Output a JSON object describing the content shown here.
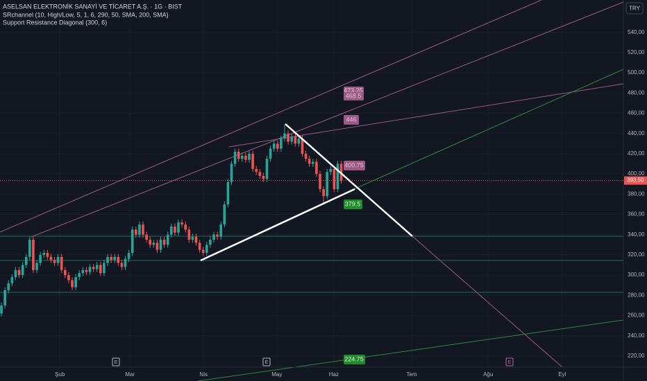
{
  "chart_data": {
    "type": "candlestick",
    "title": "ASELSAN ELEKTRONİK SANAYİ VE TİCARET A.Ş. · 1G · BIST",
    "indicators": [
      "SRchannel (10, High/Low, 5, 1, 6, 290, 50, SMA, 200, SMA)",
      "Support Resistance Diagonal (300, 6)"
    ],
    "currency": "TRY",
    "up_color": "#26a69a",
    "down_color": "#ef5350",
    "open": [
      262,
      270,
      285,
      292,
      298,
      305,
      300,
      310,
      318,
      335,
      305,
      312,
      320,
      322,
      318,
      315,
      312,
      318,
      305,
      300,
      295,
      288,
      298,
      302,
      305,
      303,
      308,
      306,
      310,
      302,
      312,
      318,
      315,
      318,
      312,
      308,
      316,
      322,
      345,
      340,
      350,
      340,
      335,
      330,
      332,
      325,
      335,
      330,
      340,
      348,
      342,
      352,
      350,
      345,
      335,
      338,
      332,
      325,
      322,
      330,
      335,
      340,
      338,
      350,
      370,
      392,
      410,
      422,
      415,
      418,
      414,
      420,
      405,
      402,
      398,
      395,
      415,
      425,
      430,
      425,
      435,
      440,
      432,
      437,
      430,
      435,
      420,
      415,
      410,
      412,
      400,
      385,
      378,
      402,
      405,
      385,
      410
    ],
    "high": [
      273,
      288,
      295,
      301,
      308,
      308,
      313,
      321,
      338,
      338,
      315,
      323,
      325,
      325,
      321,
      318,
      321,
      321,
      308,
      303,
      298,
      301,
      305,
      308,
      308,
      311,
      311,
      313,
      313,
      315,
      321,
      321,
      321,
      321,
      315,
      319,
      325,
      348,
      348,
      353,
      353,
      343,
      338,
      335,
      335,
      338,
      338,
      343,
      351,
      351,
      355,
      355,
      353,
      348,
      341,
      341,
      335,
      328,
      333,
      338,
      343,
      343,
      353,
      373,
      395,
      413,
      425,
      425,
      421,
      421,
      423,
      423,
      408,
      405,
      401,
      418,
      428,
      433,
      433,
      438,
      449,
      443,
      440,
      440,
      438,
      438,
      423,
      418,
      415,
      415,
      403,
      388,
      405,
      408,
      408,
      413,
      413
    ],
    "low": [
      259,
      267,
      282,
      289,
      295,
      297,
      297,
      307,
      315,
      302,
      302,
      309,
      317,
      315,
      312,
      309,
      309,
      302,
      297,
      292,
      285,
      285,
      295,
      299,
      300,
      300,
      303,
      303,
      299,
      299,
      309,
      312,
      312,
      309,
      305,
      305,
      313,
      319,
      337,
      337,
      337,
      332,
      327,
      327,
      322,
      322,
      327,
      327,
      337,
      339,
      339,
      347,
      342,
      332,
      332,
      329,
      322,
      319,
      319,
      327,
      332,
      335,
      335,
      347,
      367,
      389,
      407,
      412,
      412,
      411,
      411,
      402,
      399,
      395,
      392,
      392,
      412,
      422,
      422,
      422,
      432,
      429,
      429,
      427,
      427,
      417,
      412,
      407,
      407,
      397,
      382,
      370,
      375,
      399,
      382,
      382,
      390.5
    ],
    "close": [
      270,
      285,
      292,
      298,
      305,
      300,
      310,
      318,
      335,
      305,
      312,
      320,
      322,
      318,
      315,
      312,
      318,
      305,
      300,
      295,
      288,
      298,
      302,
      305,
      303,
      308,
      306,
      310,
      302,
      312,
      318,
      315,
      318,
      312,
      308,
      316,
      322,
      345,
      340,
      350,
      340,
      335,
      330,
      332,
      325,
      335,
      330,
      340,
      348,
      342,
      352,
      350,
      345,
      335,
      338,
      332,
      325,
      322,
      330,
      335,
      340,
      338,
      350,
      370,
      392,
      410,
      422,
      415,
      418,
      414,
      420,
      405,
      402,
      398,
      395,
      415,
      425,
      430,
      425,
      435,
      440,
      432,
      437,
      430,
      435,
      420,
      415,
      410,
      412,
      400,
      385,
      378,
      402,
      405,
      385,
      410,
      393.5
    ],
    "xlim": [
      -0.4,
      175.7
    ],
    "xticks": [
      {
        "value": 16.5,
        "label": "Şub"
      },
      {
        "value": 36.3,
        "label": "Mar"
      },
      {
        "value": 57.1,
        "label": "Nis"
      },
      {
        "value": 77.8,
        "label": "May"
      },
      {
        "value": 93.9,
        "label": "Haz"
      },
      {
        "value": 115.9,
        "label": "Tem"
      },
      {
        "value": 137.5,
        "label": "Ağu"
      },
      {
        "value": 158.4,
        "label": "Eyl"
      }
    ],
    "ylim": [
      209,
      572
    ],
    "yticks": [
      {
        "value": 220,
        "label": "220,00"
      },
      {
        "value": 240,
        "label": "240,00"
      },
      {
        "value": 260,
        "label": "260,00"
      },
      {
        "value": 280,
        "label": "280,00"
      },
      {
        "value": 300,
        "label": "300,00"
      },
      {
        "value": 320,
        "label": "320,00"
      },
      {
        "value": 340,
        "label": "340,00"
      },
      {
        "value": 360,
        "label": "360,00"
      },
      {
        "value": 380,
        "label": "380,00"
      },
      {
        "value": 400,
        "label": "400,00"
      },
      {
        "value": 420,
        "label": "420,00"
      },
      {
        "value": 440,
        "label": "440,00"
      },
      {
        "value": 460,
        "label": "460,00"
      },
      {
        "value": 480,
        "label": "480,00"
      },
      {
        "value": 500,
        "label": "500,00"
      },
      {
        "value": 520,
        "label": "520,00"
      },
      {
        "value": 540,
        "label": "540,00"
      }
    ],
    "last_price": {
      "value": 393.5,
      "label": "393,50"
    },
    "level_labels": [
      "473.25",
      "468.5",
      "446",
      "400.75",
      "379.5",
      "224.75"
    ],
    "event_markers": [
      "E",
      "E",
      "E"
    ]
  }
}
